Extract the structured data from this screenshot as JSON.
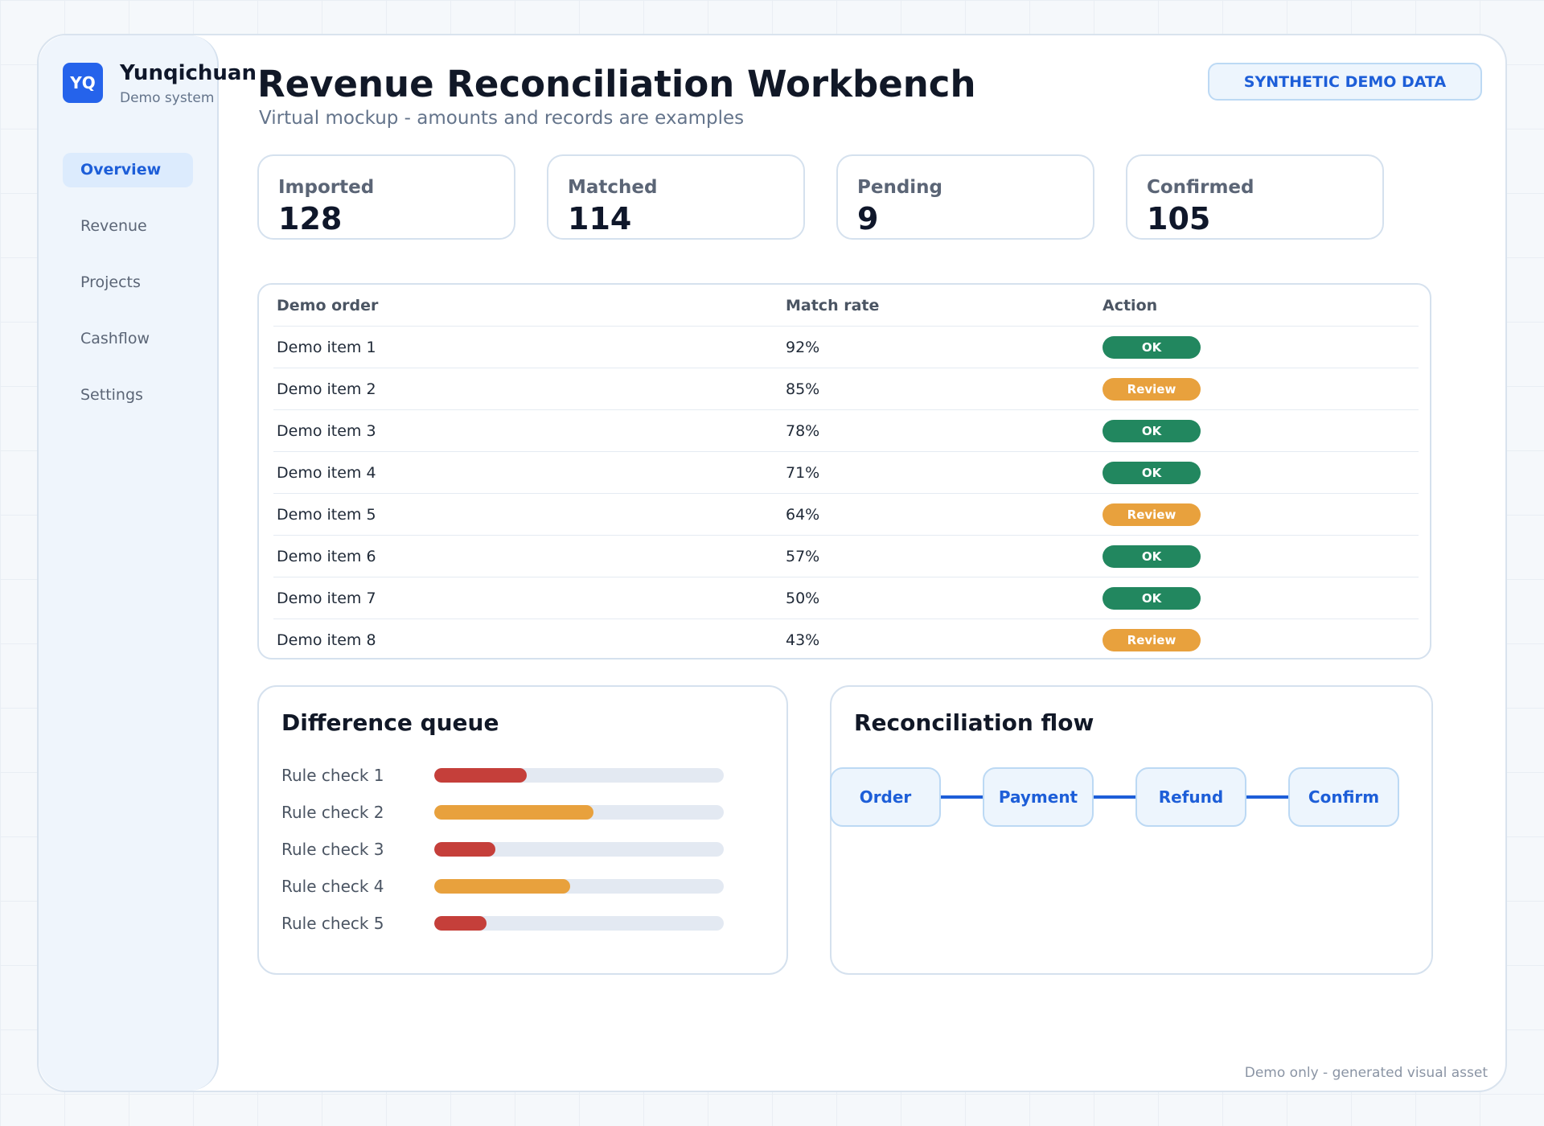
{
  "sidebar": {
    "logo_text": "YQ",
    "brand_name": "Yunqichuan",
    "brand_sub": "Demo system",
    "items": [
      {
        "label": "Overview",
        "active": true
      },
      {
        "label": "Revenue",
        "active": false
      },
      {
        "label": "Projects",
        "active": false
      },
      {
        "label": "Cashflow",
        "active": false
      },
      {
        "label": "Settings",
        "active": false
      }
    ]
  },
  "header": {
    "title": "Revenue Reconciliation Workbench",
    "subtitle": "Virtual mockup - amounts and records are examples",
    "badge": "SYNTHETIC DEMO DATA"
  },
  "stats": [
    {
      "label": "Imported",
      "value": "128"
    },
    {
      "label": "Matched",
      "value": "114"
    },
    {
      "label": "Pending",
      "value": "9"
    },
    {
      "label": "Confirmed",
      "value": "105"
    }
  ],
  "table": {
    "columns": [
      "Demo order",
      "Match rate",
      "Action"
    ],
    "rows": [
      {
        "order": "Demo item 1",
        "rate": "92%",
        "action": "OK",
        "status": "ok"
      },
      {
        "order": "Demo item 2",
        "rate": "85%",
        "action": "Review",
        "status": "review"
      },
      {
        "order": "Demo item 3",
        "rate": "78%",
        "action": "OK",
        "status": "ok"
      },
      {
        "order": "Demo item 4",
        "rate": "71%",
        "action": "OK",
        "status": "ok"
      },
      {
        "order": "Demo item 5",
        "rate": "64%",
        "action": "Review",
        "status": "review"
      },
      {
        "order": "Demo item 6",
        "rate": "57%",
        "action": "OK",
        "status": "ok"
      },
      {
        "order": "Demo item 7",
        "rate": "50%",
        "action": "OK",
        "status": "ok"
      },
      {
        "order": "Demo item 8",
        "rate": "43%",
        "action": "Review",
        "status": "review"
      }
    ]
  },
  "queue": {
    "title": "Difference queue",
    "items": [
      {
        "label": "Rule check 1",
        "level": 0.32,
        "color": "#c53f3a"
      },
      {
        "label": "Rule check 2",
        "level": 0.55,
        "color": "#e8a13d"
      },
      {
        "label": "Rule check 3",
        "level": 0.21,
        "color": "#c53f3a"
      },
      {
        "label": "Rule check 4",
        "level": 0.47,
        "color": "#e8a13d"
      },
      {
        "label": "Rule check 5",
        "level": 0.18,
        "color": "#c53f3a"
      }
    ]
  },
  "flow": {
    "title": "Reconciliation flow",
    "steps": [
      "Order",
      "Payment",
      "Refund",
      "Confirm"
    ]
  },
  "footer": "Demo only - generated visual asset",
  "colors": {
    "accent": "#1d5ed8",
    "ok": "#22875f",
    "review": "#e8a13d",
    "alert": "#c53f3a"
  }
}
